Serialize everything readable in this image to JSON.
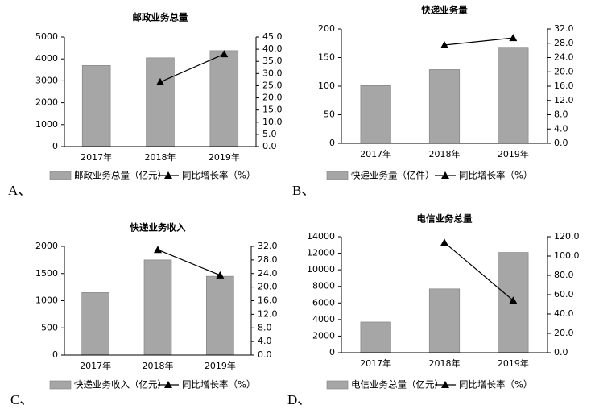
{
  "options": [
    {
      "letter": "A、"
    },
    {
      "letter": "B、"
    },
    {
      "letter": "C、"
    },
    {
      "letter": "D、"
    }
  ],
  "chart_data": [
    {
      "type": "bar",
      "title": "邮政业务总量",
      "categories": [
        "2017年",
        "2018年",
        "2019年"
      ],
      "series": [
        {
          "name": "邮政业务总量（亿元）",
          "axis": "left",
          "kind": "bar",
          "values": [
            3700,
            4050,
            4380
          ]
        },
        {
          "name": "同比增长率（%）",
          "axis": "right",
          "kind": "line",
          "values": [
            null,
            26.5,
            38.0
          ]
        }
      ],
      "y_left": {
        "min": 0,
        "max": 5000,
        "step": 1000,
        "decimals": 0
      },
      "y_right": {
        "min": 0,
        "max": 45,
        "step": 5,
        "decimals": 1
      },
      "colors": {
        "bar": "#a6a6a6",
        "line": "#000000"
      }
    },
    {
      "type": "bar",
      "title": "快递业务量",
      "categories": [
        "2017年",
        "2018年",
        "2019年"
      ],
      "series": [
        {
          "name": "快递业务量（亿件）",
          "axis": "left",
          "kind": "bar",
          "values": [
            101,
            129,
            168
          ]
        },
        {
          "name": "同比增长率（%）",
          "axis": "right",
          "kind": "line",
          "values": [
            null,
            27.5,
            29.5
          ]
        }
      ],
      "y_left": {
        "min": 0,
        "max": 200,
        "step": 50,
        "decimals": 0
      },
      "y_right": {
        "min": 0,
        "max": 32,
        "step": 4,
        "decimals": 1
      },
      "colors": {
        "bar": "#a6a6a6",
        "line": "#000000"
      }
    },
    {
      "type": "bar",
      "title": "快递业务收入",
      "categories": [
        "2017年",
        "2018年",
        "2019年"
      ],
      "series": [
        {
          "name": "快递业务收入（亿元）",
          "axis": "left",
          "kind": "bar",
          "values": [
            1150,
            1750,
            1450
          ]
        },
        {
          "name": "同比增长率（%）",
          "axis": "right",
          "kind": "line",
          "values": [
            null,
            31.0,
            23.5
          ]
        }
      ],
      "y_left": {
        "min": 0,
        "max": 2000,
        "step": 500,
        "decimals": 0
      },
      "y_right": {
        "min": 0,
        "max": 32,
        "step": 4,
        "decimals": 1
      },
      "colors": {
        "bar": "#a6a6a6",
        "line": "#000000"
      }
    },
    {
      "type": "bar",
      "title": "电信业务总量",
      "categories": [
        "2017年",
        "2018年",
        "2019年"
      ],
      "series": [
        {
          "name": "电信业务总量（亿元）",
          "axis": "left",
          "kind": "bar",
          "values": [
            3700,
            7700,
            12100
          ]
        },
        {
          "name": "同比增长率（%）",
          "axis": "right",
          "kind": "line",
          "values": [
            null,
            114,
            54
          ]
        }
      ],
      "y_left": {
        "min": 0,
        "max": 14000,
        "step": 2000,
        "decimals": 0
      },
      "y_right": {
        "min": 0,
        "max": 120,
        "step": 20,
        "decimals": 1
      },
      "colors": {
        "bar": "#a6a6a6",
        "line": "#000000"
      }
    }
  ]
}
